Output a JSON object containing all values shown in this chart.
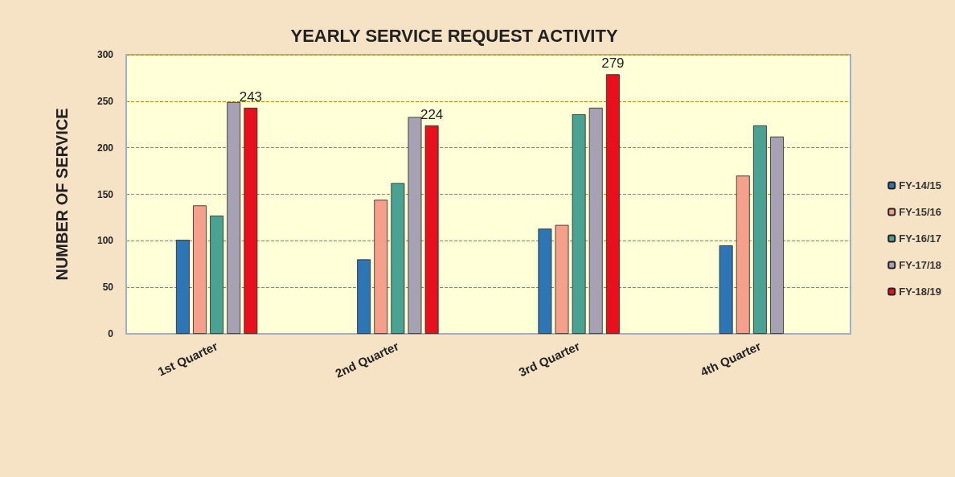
{
  "chart_data": {
    "type": "bar",
    "title": "YEARLY SERVICE REQUEST ACTIVITY",
    "ylabel": "NUMBER OF SERVICE",
    "categories": [
      "1st Quarter",
      "2nd Quarter",
      "3rd Quarter",
      "4th Quarter"
    ],
    "series": [
      {
        "name": "FY-14/15",
        "color": "#2e75b6",
        "values": [
          101,
          80,
          113,
          95
        ]
      },
      {
        "name": "FY-15/16",
        "color": "#f4a08a",
        "values": [
          138,
          144,
          117,
          170
        ]
      },
      {
        "name": "FY-16/17",
        "color": "#4aa392",
        "values": [
          127,
          162,
          236,
          224
        ]
      },
      {
        "name": "FY-17/18",
        "color": "#a6a2b4",
        "values": [
          249,
          233,
          243,
          212
        ]
      },
      {
        "name": "FY-18/19",
        "color": "#e8101c",
        "values": [
          243,
          224,
          279,
          null
        ],
        "value_labels": [
          "243",
          "224",
          "279",
          null
        ]
      }
    ],
    "ylim": [
      0,
      300
    ],
    "yticks": [
      0,
      50,
      100,
      150,
      200,
      250,
      300
    ],
    "grid": "y",
    "legend": "right"
  }
}
